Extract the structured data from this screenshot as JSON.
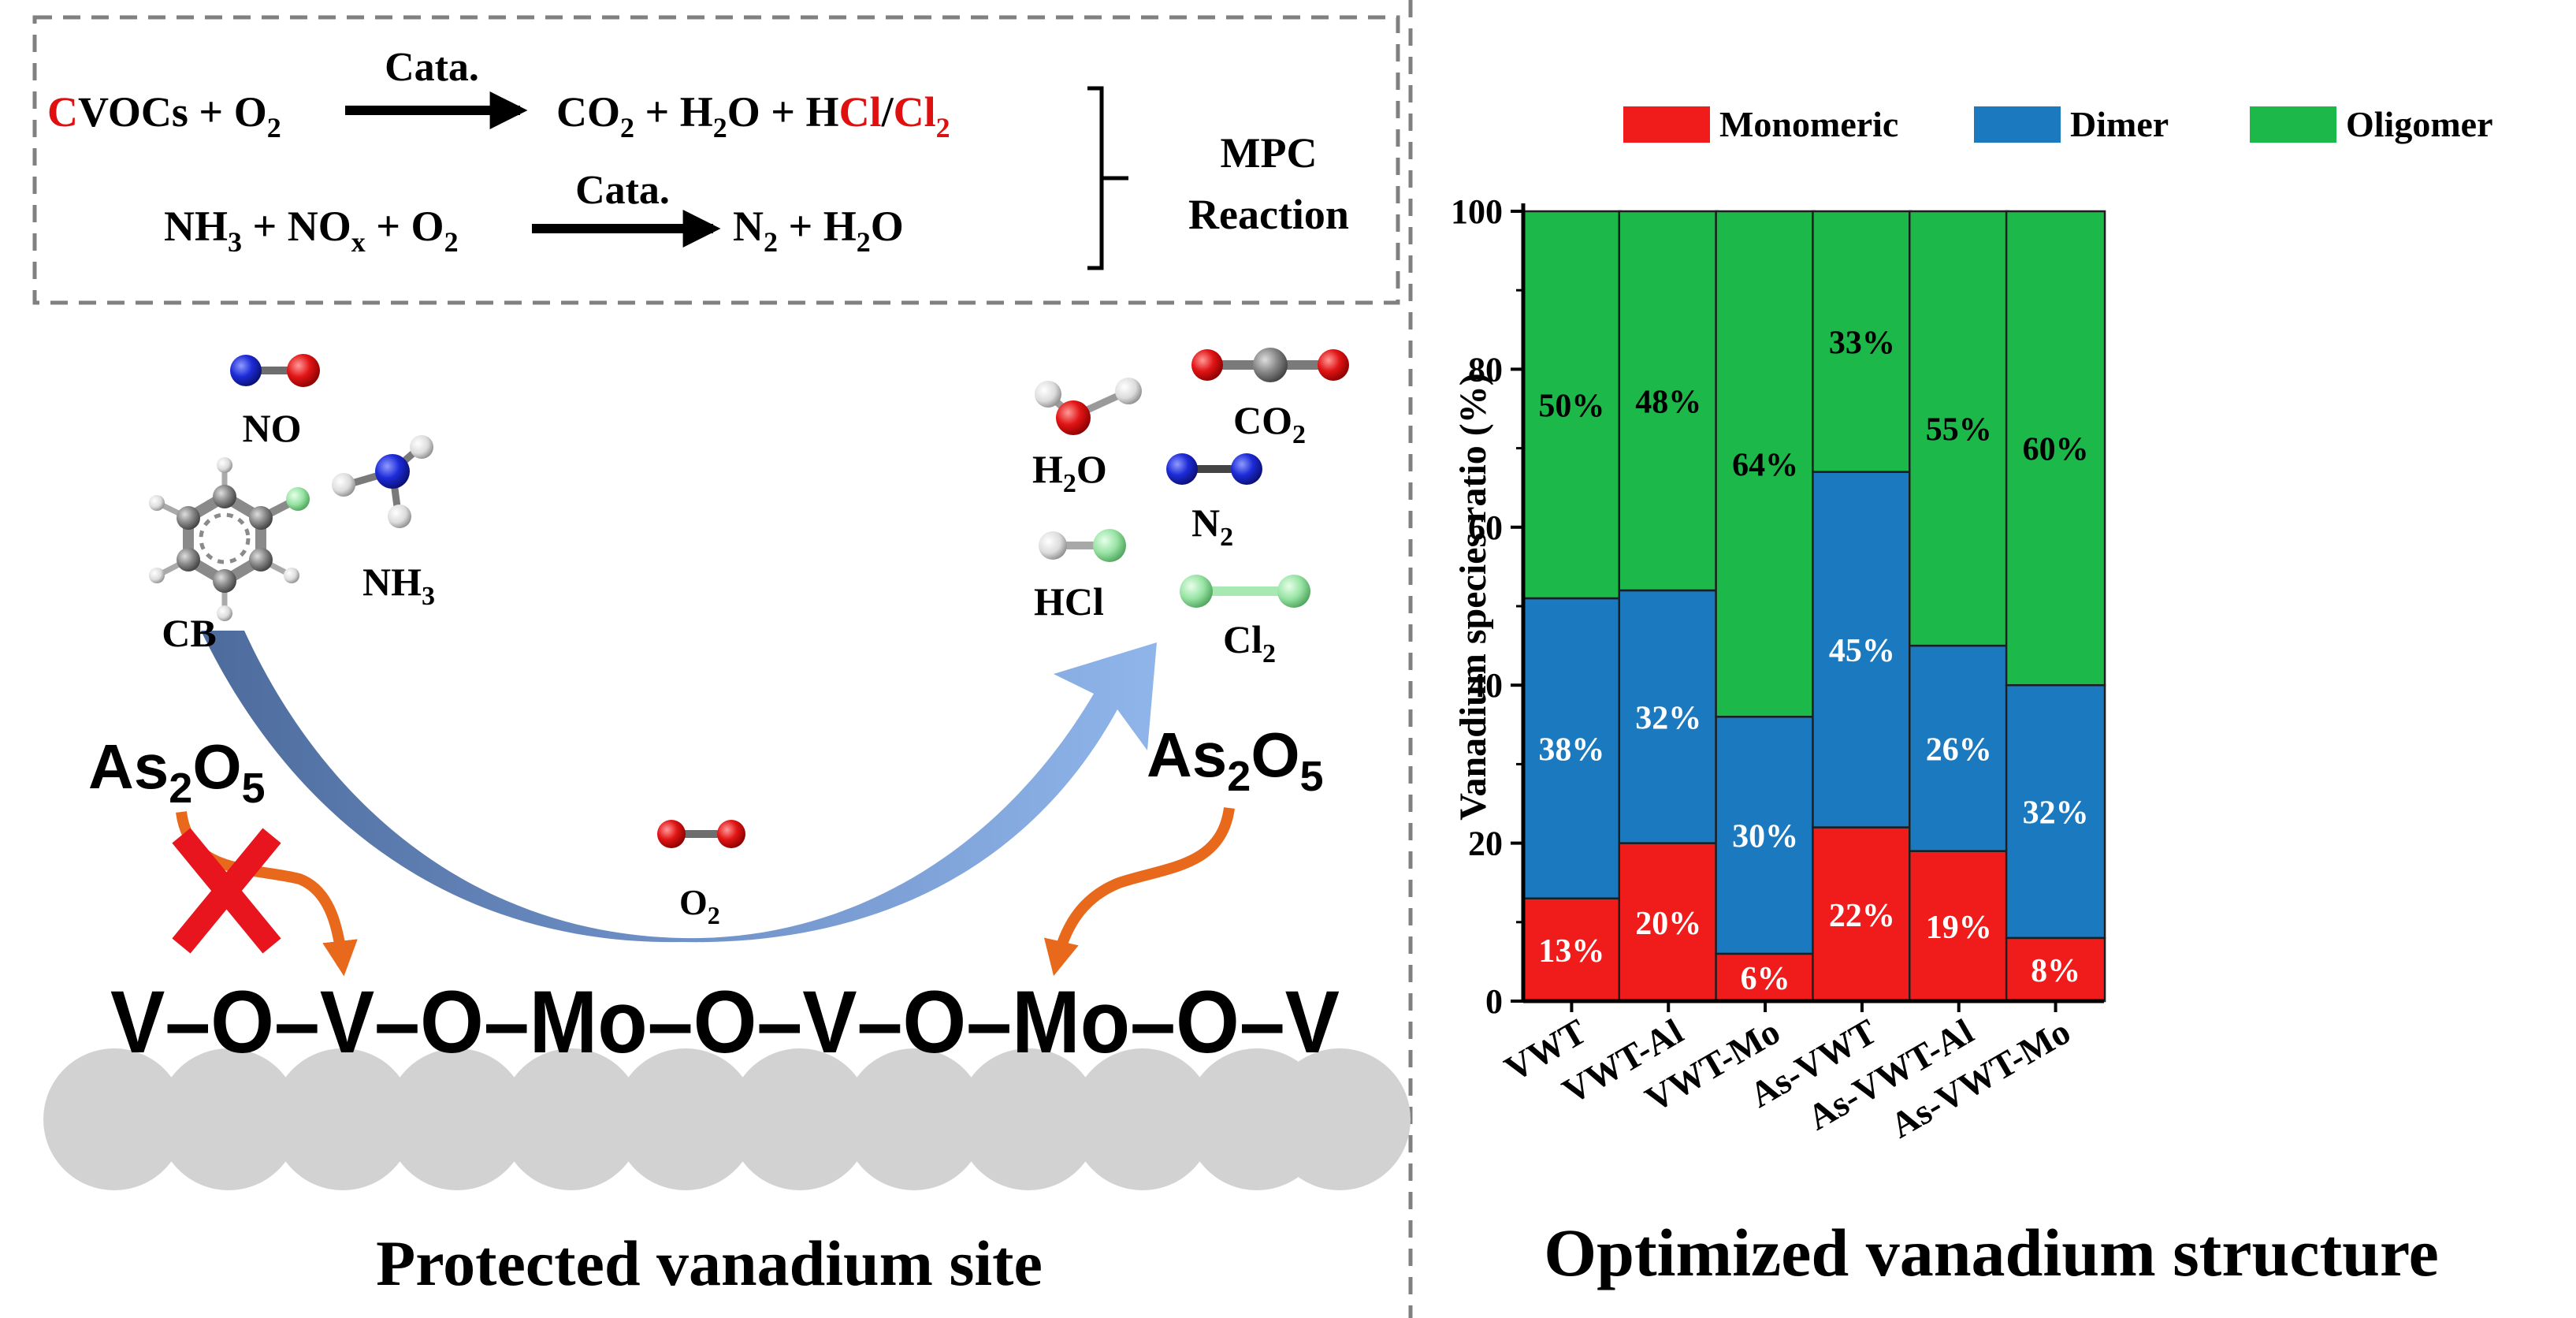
{
  "colors": {
    "monomeric": "#f01c1c",
    "dimer": "#1b7abf",
    "oligomer": "#1cb84a",
    "highlight_red": "#e01010",
    "arrow_orange": "#e8681c",
    "cross_red": "#e8141e",
    "support_gray": "#d2d2d2"
  },
  "reactions": {
    "r1": {
      "c_red": "C",
      "reactant": "VOCs + O",
      "reactant_sub": "2",
      "over_arrow": "Cata.",
      "p1": "CO",
      "p1_sub": "2",
      "p2": " + H",
      "p2_sub": "2",
      "p3": "O + H",
      "hcl_red": "Cl",
      "slash": "/",
      "cl2_red": "Cl",
      "cl2_sub": "2"
    },
    "r2": {
      "a": "NH",
      "a_sub": "3",
      "b": " + NO",
      "b_sub": "x",
      "c": " + O",
      "c_sub": "2",
      "over_arrow": "Cata.",
      "p1": "N",
      "p1_sub": "2",
      "p2": " + H",
      "p2_sub": "2",
      "p3": "O"
    },
    "bracket_label_line1": "MPC",
    "bracket_label_line2": "Reaction"
  },
  "molecules": {
    "no": "NO",
    "nh3": "NH",
    "nh3_sub": "3",
    "cb": "CB",
    "h2o": "H",
    "h2o_sub": "2",
    "h2o_end": "O",
    "co2": "CO",
    "co2_sub": "2",
    "n2": "N",
    "n2_sub": "2",
    "hcl": "HCl",
    "cl2": "Cl",
    "cl2_sub": "2",
    "o2": "O",
    "o2_sub": "2"
  },
  "arsenic": {
    "label": "As",
    "sub1": "2",
    "mid": "O",
    "sub2": "5"
  },
  "chain": "V–O–V–O–Mo–O–V–O–Mo–O–V",
  "left_caption": "Protected vanadium site",
  "right_caption": "Optimized vanadium structure",
  "chart_data": {
    "type": "bar",
    "stacked": true,
    "categories": [
      "VWT",
      "VWT-Al",
      "VWT-Mo",
      "As-VWT",
      "As-VWT-Al",
      "As-VWT-Mo"
    ],
    "series": [
      {
        "name": "Monomeric",
        "values": [
          13,
          20,
          6,
          22,
          19,
          8
        ],
        "labels": [
          "13%",
          "20%",
          "6%",
          "22%",
          "19%",
          "8%"
        ]
      },
      {
        "name": "Dimer",
        "values": [
          38,
          32,
          30,
          45,
          26,
          32
        ],
        "labels": [
          "38%",
          "32%",
          "30%",
          "45%",
          "26%",
          "32%"
        ]
      },
      {
        "name": "Oligomer",
        "values": [
          50,
          48,
          64,
          33,
          55,
          60
        ],
        "labels": [
          "50%",
          "48%",
          "64%",
          "33%",
          "55%",
          "60%"
        ]
      }
    ],
    "ylabel": "Vanadium species ratio (%)",
    "xlabel": "",
    "ylim": [
      0,
      100
    ],
    "yticks": [
      "0",
      "20",
      "40",
      "60",
      "80",
      "100"
    ],
    "legend_position": "top"
  }
}
